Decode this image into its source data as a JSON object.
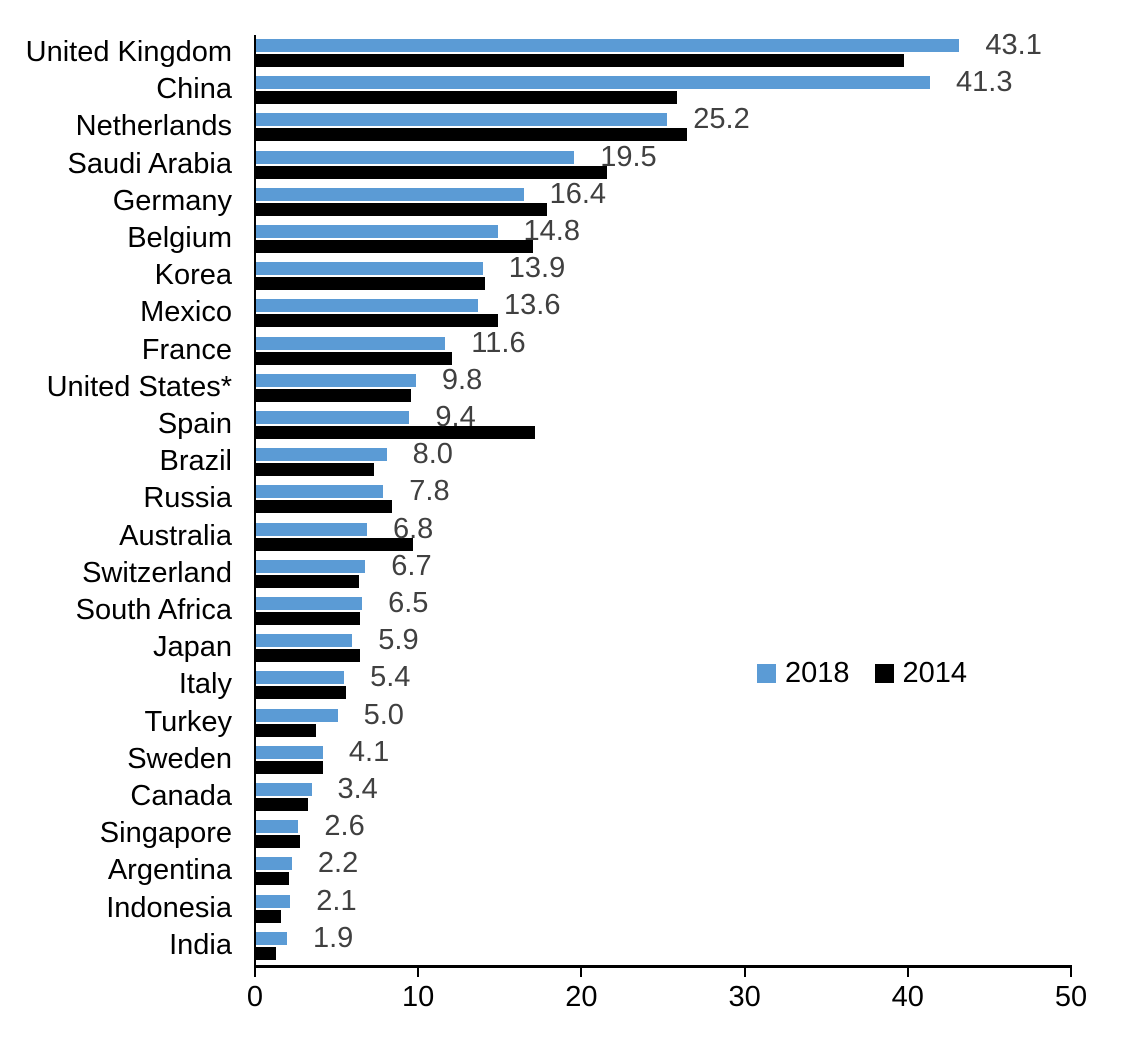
{
  "chart_data": {
    "type": "bar",
    "orientation": "horizontal",
    "title": "",
    "xlabel": "",
    "ylabel": "",
    "xlim": [
      0,
      50
    ],
    "x_ticks": [
      0,
      10,
      20,
      30,
      40,
      50
    ],
    "grid": false,
    "legend": {
      "position": "center-right",
      "entries": [
        "2018",
        "2014"
      ]
    },
    "colors": {
      "series_2018": "#5B9BD5",
      "series_2014": "#000000",
      "data_label": "#404040",
      "axis": "#000000",
      "category_label": "#000000"
    },
    "categories": [
      "United Kingdom",
      "China",
      "Netherlands",
      "Saudi Arabia",
      "Germany",
      "Belgium",
      "Korea",
      "Mexico",
      "France",
      "United States*",
      "Spain",
      "Brazil",
      "Russia",
      "Australia",
      "Switzerland",
      "South Africa",
      "Japan",
      "Italy",
      "Turkey",
      "Sweden",
      "Canada",
      "Singapore",
      "Argentina",
      "Indonesia",
      "India"
    ],
    "series": [
      {
        "name": "2018",
        "color": "#5B9BD5",
        "data_labels_visible": true,
        "values": [
          43.1,
          41.3,
          25.2,
          19.5,
          16.4,
          14.8,
          13.9,
          13.6,
          11.6,
          9.8,
          9.4,
          8.0,
          7.8,
          6.8,
          6.7,
          6.5,
          5.9,
          5.4,
          5.0,
          4.1,
          3.4,
          2.6,
          2.2,
          2.1,
          1.9
        ],
        "data_labels": [
          "43.1",
          "41.3",
          "25.2",
          "19.5",
          "16.4",
          "14.8",
          "13.9",
          "13.6",
          "11.6",
          "9.8",
          "9.4",
          "8.0",
          "7.8",
          "6.8",
          "6.7",
          "6.5",
          "5.9",
          "5.4",
          "5.0",
          "4.1",
          "3.4",
          "2.6",
          "2.2",
          "2.1",
          "1.9"
        ]
      },
      {
        "name": "2014",
        "color": "#000000",
        "data_labels_visible": false,
        "values": [
          39.7,
          25.8,
          26.4,
          21.5,
          17.8,
          17.0,
          14.0,
          14.8,
          12.0,
          9.5,
          17.1,
          7.2,
          8.3,
          9.6,
          6.3,
          6.4,
          6.4,
          5.5,
          3.7,
          4.1,
          3.2,
          2.7,
          2.0,
          1.5,
          1.2
        ]
      }
    ]
  }
}
